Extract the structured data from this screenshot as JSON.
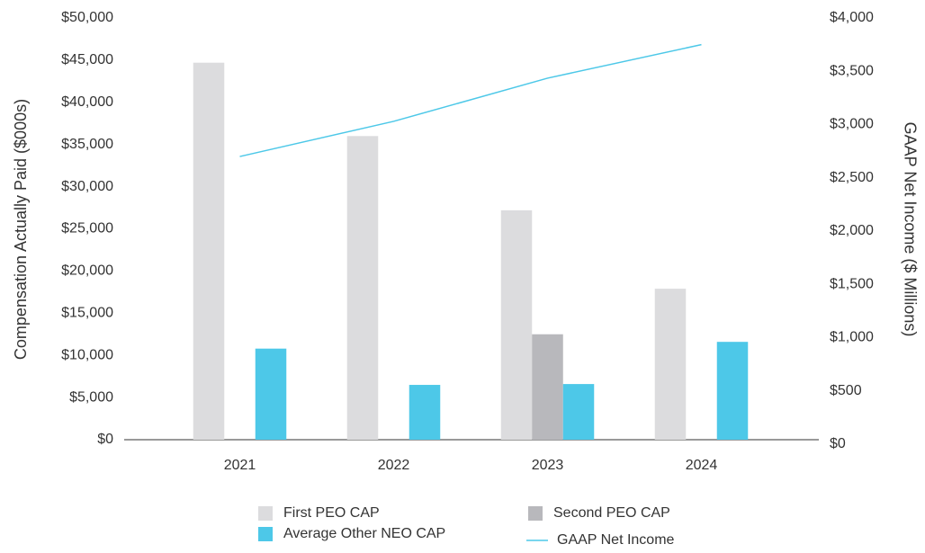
{
  "chart_data": {
    "type": "bar",
    "y_label": "Compensation Actually Paid ($000s)",
    "y2_label": "GAAP Net Income ($ Millions)",
    "categories": [
      "2021",
      "2022",
      "2023",
      "2024"
    ],
    "series": [
      {
        "name": "First PEO CAP",
        "color": "#dcdcde",
        "type": "bar",
        "values": [
          44700,
          36000,
          27200,
          17900
        ]
      },
      {
        "name": "Second PEO CAP",
        "color": "#b8b8bc",
        "type": "bar",
        "values": [
          null,
          null,
          12500,
          null
        ]
      },
      {
        "name": "Average Other NEO CAP",
        "color": "#4dc8e8",
        "type": "bar",
        "values": [
          10800,
          6500,
          6600,
          11600
        ]
      },
      {
        "name": "GAAP Net Income",
        "color": "#4dc8e8",
        "type": "line",
        "axis": "y2",
        "values": [
          2700,
          3030,
          3435,
          3750
        ]
      }
    ],
    "ylim": [
      0,
      50000
    ],
    "yticks": [
      {
        "value": 0,
        "label": "$0"
      },
      {
        "value": 5000,
        "label": "$5,000"
      },
      {
        "value": 10000,
        "label": "$10,000"
      },
      {
        "value": 15000,
        "label": "$15,000"
      },
      {
        "value": 20000,
        "label": "$20,000"
      },
      {
        "value": 25000,
        "label": "$25,000"
      },
      {
        "value": 30000,
        "label": "$30,000"
      },
      {
        "value": 35000,
        "label": "$35,000"
      },
      {
        "value": 40000,
        "label": "$40,000"
      },
      {
        "value": 45000,
        "label": "$45,000"
      },
      {
        "value": 50000,
        "label": "$50,000"
      }
    ],
    "y2lim": [
      0,
      4000
    ],
    "y2ticks": [
      {
        "value": 0,
        "label": "$0"
      },
      {
        "value": 500,
        "label": "$500"
      },
      {
        "value": 1000,
        "label": "$1,000"
      },
      {
        "value": 1500,
        "label": "$1,500"
      },
      {
        "value": 2000,
        "label": "$2,000"
      },
      {
        "value": 2500,
        "label": "$2,500"
      },
      {
        "value": 3000,
        "label": "$3,000"
      },
      {
        "value": 3500,
        "label": "$3,500"
      },
      {
        "value": 4000,
        "label": "$4,000"
      }
    ]
  }
}
